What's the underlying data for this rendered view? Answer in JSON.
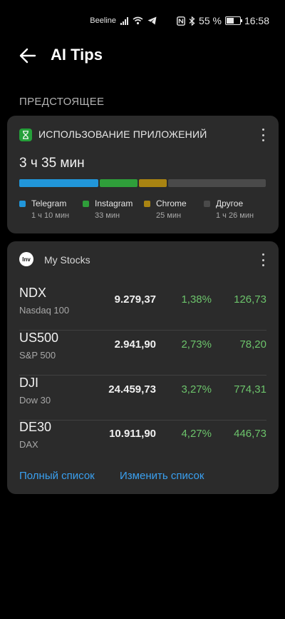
{
  "status_bar": {
    "carrier": "Beeline",
    "battery": "55 %",
    "time": "16:58",
    "battery_level": 0.55,
    "icons": [
      "signal-icon",
      "wifi-icon",
      "telegram-icon",
      "nfc-icon",
      "bluetooth-icon",
      "battery-icon"
    ]
  },
  "header": {
    "title": "AI Tips",
    "back_icon": "arrow-left-icon"
  },
  "section_label": "ПРЕДСТОЯЩЕЕ",
  "app_usage": {
    "title": "ИСПОЛЬЗОВАНИЕ ПРИЛОЖЕНИЙ",
    "icon": "hourglass-icon",
    "total": "3 ч 35 мин",
    "apps": [
      {
        "name": "Telegram",
        "time": "1 ч 10 мин",
        "minutes": 70,
        "color": "#2196d9"
      },
      {
        "name": "Instagram",
        "time": "33 мин",
        "minutes": 33,
        "color": "#2f9e3a"
      },
      {
        "name": "Chrome",
        "time": "25 мин",
        "minutes": 25,
        "color": "#a98412"
      },
      {
        "name": "Другое",
        "time": "1 ч 26 мин",
        "minutes": 86,
        "color": "#4a4a4a"
      }
    ]
  },
  "stocks": {
    "title": "My Stocks",
    "logo_text": "Inv",
    "rows": [
      {
        "symbol": "NDX",
        "name": "Nasdaq 100",
        "price": "9.279,37",
        "percent": "1,38%",
        "change": "126,73"
      },
      {
        "symbol": "US500",
        "name": "S&P 500",
        "price": "2.941,90",
        "percent": "2,73%",
        "change": "78,20"
      },
      {
        "symbol": "DJI",
        "name": "Dow 30",
        "price": "24.459,73",
        "percent": "3,27%",
        "change": "774,31"
      },
      {
        "symbol": "DE30",
        "name": "DAX",
        "price": "10.911,90",
        "percent": "4,27%",
        "change": "446,73"
      }
    ],
    "full_list_label": "Полный список",
    "edit_list_label": "Изменить список"
  },
  "colors": {
    "background": "#000000",
    "card": "#2b2b2b",
    "positive": "#6cc36b",
    "link": "#3aa0f0"
  }
}
